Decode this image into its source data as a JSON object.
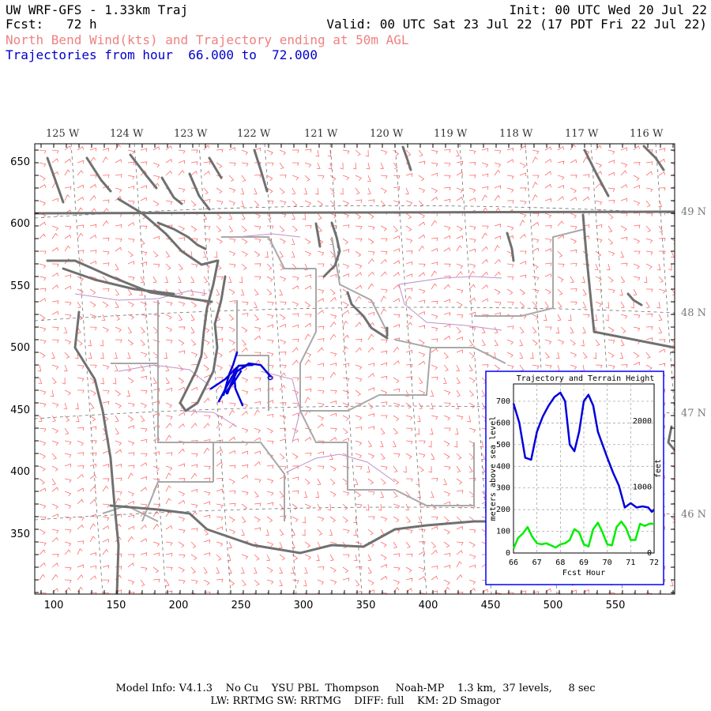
{
  "header": {
    "title": "UW WRF-GFS - 1.33km Traj",
    "init": "Init: 00 UTC Wed 20 Jul 22",
    "fcst": "Fcst:   72 h",
    "valid": "Valid: 00 UTC Sat 23 Jul 22 (17 PDT Fri 22 Jul 22)",
    "subtitle": "North Bend Wind(kts) and Trajectory ending at 50m AGL",
    "traj_range": "Trajectories from hour  66.000 to  72.000"
  },
  "colors": {
    "subtitle": "#f08080",
    "traj_range": "#0000cc",
    "trajectory": "#0000dd",
    "terrain_line": "#00ee00",
    "coast": "#707070",
    "state_border": "#a0a0a0",
    "county": "#c090c8",
    "wind_barb": "#ff6b6b",
    "grid": "#707070",
    "inset_border": "#0000ff"
  },
  "map": {
    "lon_labels": [
      "125 W",
      "124 W",
      "123 W",
      "122 W",
      "121 W",
      "120 W",
      "119 W",
      "118 W",
      "117 W",
      "116 W"
    ],
    "lat_labels": [
      "49 N",
      "48 N",
      "47 N",
      "46 N"
    ],
    "y_ticks": [
      "650",
      "600",
      "550",
      "500",
      "450",
      "400",
      "350"
    ],
    "x_ticks": [
      "100",
      "150",
      "200",
      "250",
      "300",
      "350",
      "400",
      "450",
      "500",
      "550"
    ]
  },
  "inset": {
    "title": "Trajectory and Terrain Height",
    "ylabel_left": "meters above sea level",
    "ylabel_right": "feet",
    "xlabel": "Fcst Hour",
    "x_ticks": [
      "66",
      "67",
      "68",
      "69",
      "70",
      "71",
      "72"
    ],
    "y_ticks_left": [
      "0",
      "100",
      "200",
      "300",
      "400",
      "500",
      "600",
      "700"
    ],
    "y_ticks_right": [
      "0",
      "1000",
      "2000"
    ]
  },
  "chart_data": {
    "type": "line",
    "title": "Trajectory and Terrain Height",
    "xlabel": "Fcst Hour",
    "ylabel": "meters above sea level",
    "xlim": [
      66,
      72
    ],
    "ylim": [
      0,
      780
    ],
    "grid": true,
    "series": [
      {
        "color": "#0000dd",
        "x": [
          66.0,
          66.25,
          66.5,
          66.75,
          67.0,
          67.25,
          67.5,
          67.75,
          68.0,
          68.2,
          68.4,
          68.6,
          68.8,
          69.0,
          69.2,
          69.4,
          69.6,
          69.8,
          70.0,
          70.25,
          70.5,
          70.75,
          71.0,
          71.25,
          71.5,
          71.75,
          71.9,
          72.0
        ],
        "y": [
          690,
          600,
          440,
          430,
          560,
          630,
          680,
          720,
          740,
          700,
          500,
          470,
          560,
          700,
          730,
          680,
          560,
          500,
          440,
          370,
          310,
          210,
          230,
          210,
          215,
          210,
          190,
          200
        ]
      },
      {
        "color": "#00ee00",
        "x": [
          66.0,
          66.2,
          66.4,
          66.6,
          66.8,
          67.0,
          67.2,
          67.4,
          67.6,
          67.8,
          68.0,
          68.2,
          68.4,
          68.6,
          68.8,
          69.0,
          69.2,
          69.4,
          69.6,
          69.8,
          70.0,
          70.2,
          70.4,
          70.6,
          70.8,
          71.0,
          71.2,
          71.4,
          71.6,
          71.8,
          72.0
        ],
        "y": [
          20,
          70,
          90,
          120,
          75,
          45,
          40,
          45,
          35,
          25,
          40,
          45,
          60,
          110,
          95,
          40,
          30,
          110,
          140,
          95,
          40,
          35,
          120,
          145,
          115,
          60,
          60,
          135,
          125,
          135,
          135
        ]
      }
    ]
  },
  "footer": {
    "line1": "Model Info: V4.1.3    No Cu    YSU PBL  Thompson     Noah-MP    1.3 km,  37 levels,     8 sec",
    "line2": "LW: RRTMG SW: RRTMG    DIFF: full    KM: 2D Smagor"
  }
}
